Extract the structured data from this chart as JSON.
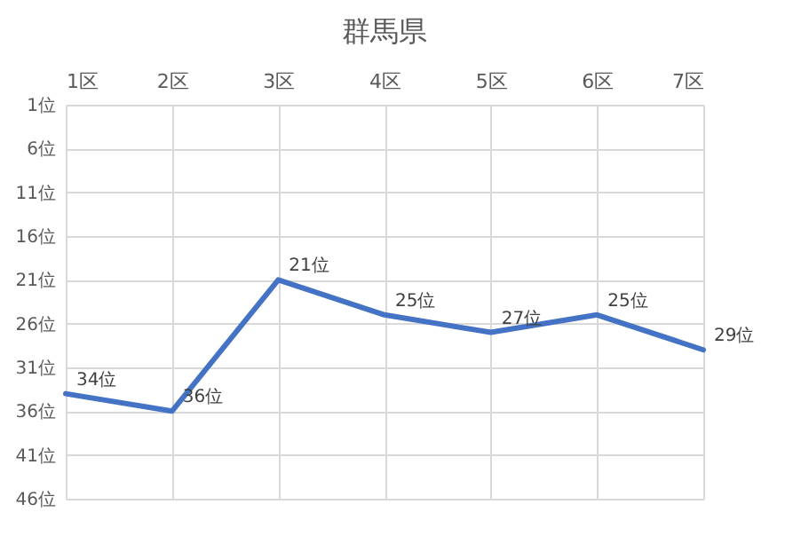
{
  "chart_data": {
    "type": "line",
    "title": "群馬県",
    "categories": [
      "1区",
      "2区",
      "3区",
      "4区",
      "5区",
      "6区",
      "7区"
    ],
    "series": [
      {
        "color": "#4472c4",
        "values": [
          34,
          36,
          21,
          25,
          27,
          25,
          29
        ]
      }
    ],
    "value_labels": [
      "34位",
      "36位",
      "21位",
      "25位",
      "27位",
      "25位",
      "29位"
    ],
    "ylim": [
      46,
      1
    ],
    "yticks": [
      {
        "value": 1,
        "label": "1位"
      },
      {
        "value": 6,
        "label": "6位"
      },
      {
        "value": 11,
        "label": "11位"
      },
      {
        "value": 16,
        "label": "16位"
      },
      {
        "value": 21,
        "label": "21位"
      },
      {
        "value": 26,
        "label": "26位"
      },
      {
        "value": 31,
        "label": "31位"
      },
      {
        "value": 36,
        "label": "36位"
      },
      {
        "value": 41,
        "label": "41位"
      },
      {
        "value": 46,
        "label": "46位"
      }
    ],
    "grid": true,
    "marker": "none",
    "line_style": "solid"
  }
}
